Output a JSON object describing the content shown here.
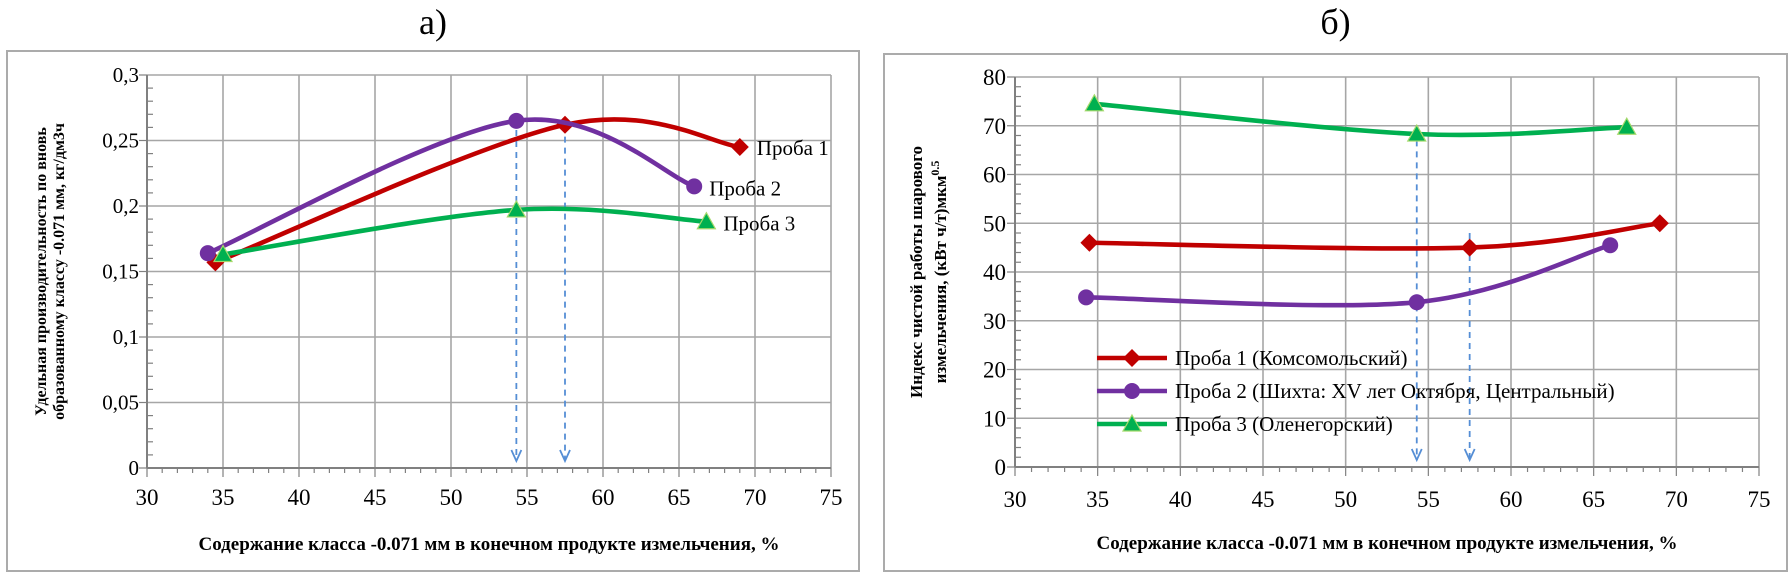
{
  "figure": {
    "background": "#ffffff",
    "grid_color": "#a6a6a6",
    "axis_color": "#808080",
    "arrow_color": "#558ed5"
  },
  "chart_data": [
    {
      "id": "a",
      "type": "line",
      "panel_label": "а)",
      "xlabel": "Содержание класса -0.071 мм в конечном продукте измельчения, %",
      "ylabel_lines": [
        "Удельная производительность по вновь",
        "образованному классу -0.071 мм, кг/дм3ч"
      ],
      "ylabel_sup": "",
      "xlim": [
        30,
        75
      ],
      "ylim": [
        0,
        0.3
      ],
      "x_ticks": [
        30,
        35,
        40,
        45,
        50,
        55,
        60,
        65,
        70,
        75
      ],
      "x_tick_labels": [
        "30",
        "35",
        "40",
        "45",
        "50",
        "55",
        "60",
        "65",
        "70",
        "75"
      ],
      "y_ticks": [
        0,
        0.05,
        0.1,
        0.15,
        0.2,
        0.25,
        0.3
      ],
      "y_tick_labels": [
        "0",
        "0,05",
        "0,1",
        "0,15",
        "0,2",
        "0,25",
        "0,3"
      ],
      "x_minor_step": 1,
      "y_minor_step": 0.01,
      "grid": true,
      "legend": false,
      "end_labels": true,
      "series": [
        {
          "name": "Проба 1",
          "color": "#c00000",
          "marker": "diamond",
          "points": [
            [
              34.5,
              0.157
            ],
            [
              57.5,
              0.262
            ],
            [
              69,
              0.245
            ]
          ]
        },
        {
          "name": "Проба 2",
          "color": "#7030a0",
          "marker": "circle",
          "points": [
            [
              34,
              0.164
            ],
            [
              54.3,
              0.265
            ],
            [
              66,
              0.215
            ]
          ]
        },
        {
          "name": "Проба 3",
          "color": "#00b050",
          "marker": "triangle",
          "points": [
            [
              35,
              0.163
            ],
            [
              54.3,
              0.197
            ],
            [
              66.8,
              0.188
            ]
          ]
        }
      ],
      "dashed_arrows": [
        {
          "x": 54.3,
          "y_top": 0.258
        },
        {
          "x": 57.5,
          "y_top": 0.253
        }
      ]
    },
    {
      "id": "b",
      "type": "line",
      "panel_label": "б)",
      "xlabel": "Содержание класса -0.071 мм в конечном продукте измельчения, %",
      "ylabel_lines": [
        "Индекс чистой работы шарового",
        "измельчения, (кВт ч/т)мкм"
      ],
      "ylabel_sup": "0.5",
      "xlim": [
        30,
        75
      ],
      "ylim": [
        0,
        80
      ],
      "x_ticks": [
        30,
        35,
        40,
        45,
        50,
        55,
        60,
        65,
        70,
        75
      ],
      "x_tick_labels": [
        "30",
        "35",
        "40",
        "45",
        "50",
        "55",
        "60",
        "65",
        "70",
        "75"
      ],
      "y_ticks": [
        0,
        10,
        20,
        30,
        40,
        50,
        60,
        70,
        80
      ],
      "y_tick_labels": [
        "0",
        "10",
        "20",
        "30",
        "40",
        "50",
        "60",
        "70",
        "80"
      ],
      "x_minor_step": 1,
      "y_minor_step": 2,
      "grid": true,
      "legend": true,
      "end_labels": false,
      "series": [
        {
          "name": "Проба 1 (Комсомольский)",
          "color": "#c00000",
          "marker": "diamond",
          "points": [
            [
              34.5,
              46
            ],
            [
              57.5,
              45
            ],
            [
              69,
              50
            ]
          ]
        },
        {
          "name": "Проба 2 (Шихта: XV лет Октября, Центральный)",
          "color": "#7030a0",
          "marker": "circle",
          "points": [
            [
              34.3,
              34.8
            ],
            [
              54.3,
              33.8
            ],
            [
              66,
              45.5
            ]
          ]
        },
        {
          "name": "Проба 3 (Оленегорский)",
          "color": "#00b050",
          "marker": "triangle",
          "points": [
            [
              34.8,
              74.5
            ],
            [
              54.3,
              68.3
            ],
            [
              67,
              69.7
            ]
          ]
        }
      ],
      "dashed_arrows": [
        {
          "x": 54.3,
          "y_top": 67
        },
        {
          "x": 57.5,
          "y_top": 48
        }
      ]
    }
  ]
}
